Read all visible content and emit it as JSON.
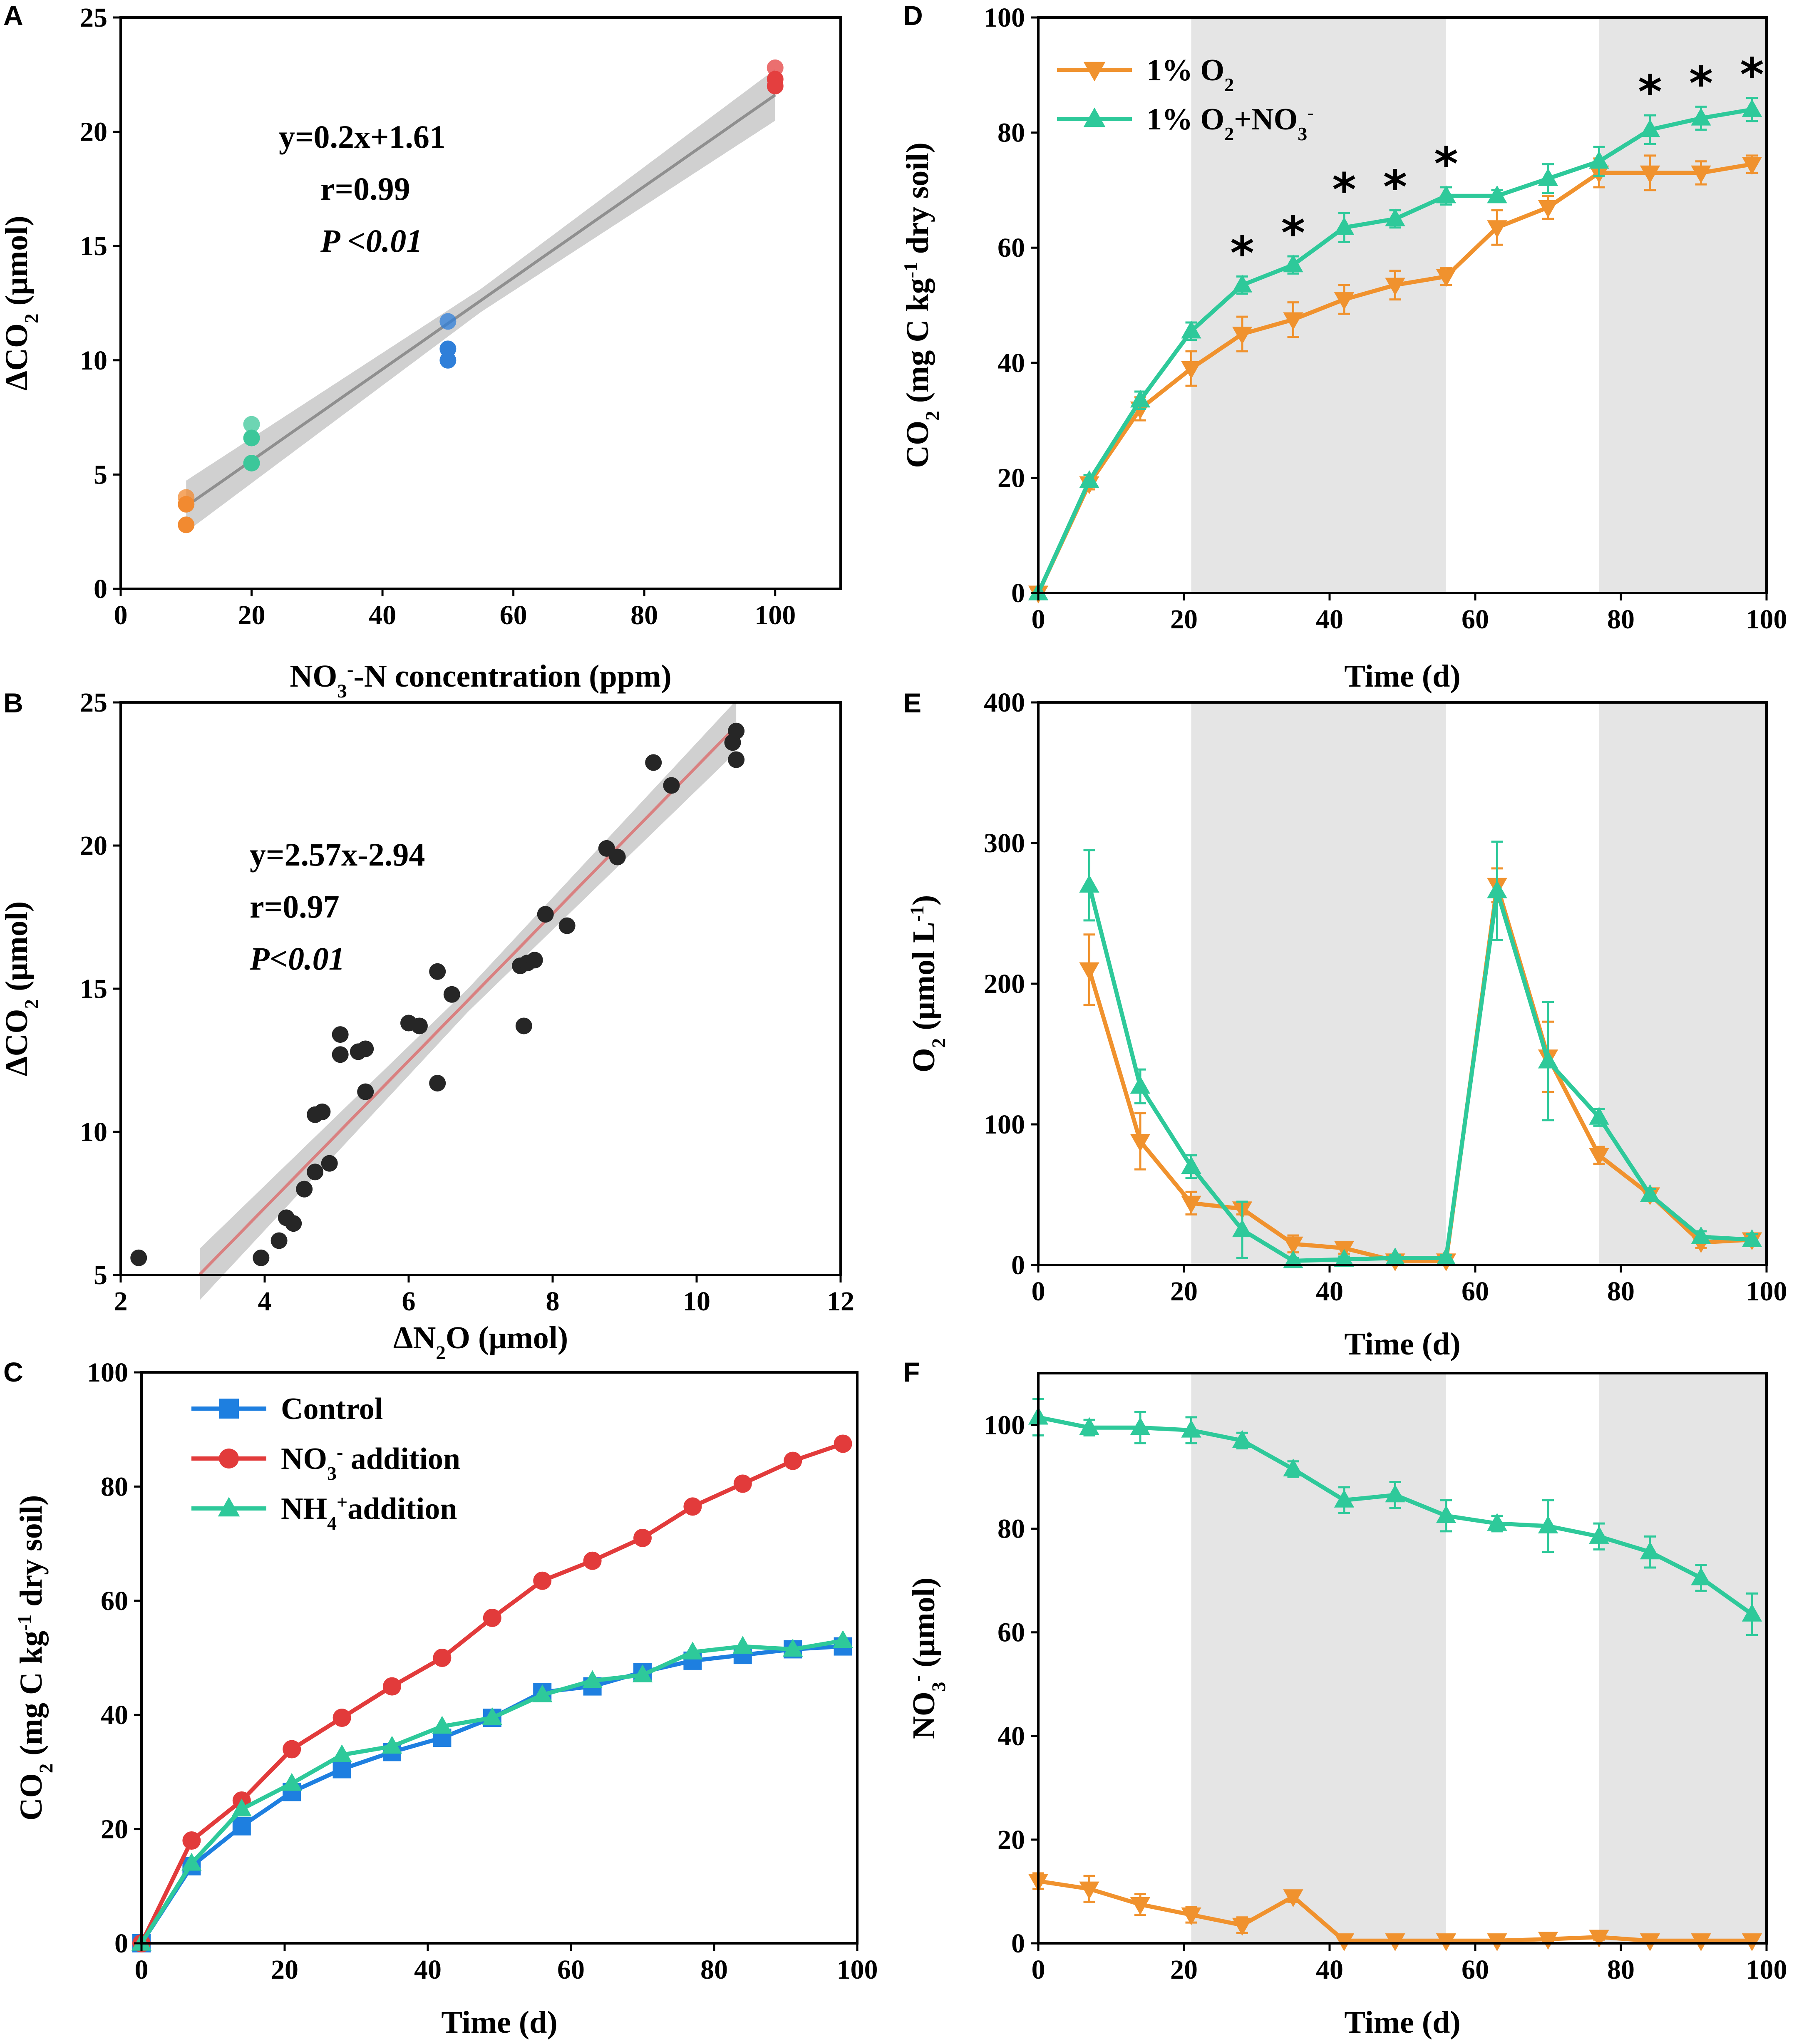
{
  "figure": {
    "panels": [
      {
        "id": "A",
        "letter": "A",
        "xlabel_parts": [
          {
            "t": "NO"
          },
          {
            "t": "3",
            "sub": true
          },
          {
            "t": "-",
            "sup": true
          },
          {
            "t": "-N concentration (ppm)"
          }
        ],
        "ylabel_parts": [
          {
            "t": "ΔCO"
          },
          {
            "t": "2",
            "sub": true
          },
          {
            "t": " (μmol)"
          }
        ],
        "annotations": [
          "y=0.2x+1.61",
          "r=0.99",
          "P <0.01"
        ]
      },
      {
        "id": "B",
        "letter": "B",
        "xlabel_parts": [
          {
            "t": "ΔN"
          },
          {
            "t": "2",
            "sub": true
          },
          {
            "t": "O (μmol)"
          }
        ],
        "ylabel_parts": [
          {
            "t": "ΔCO"
          },
          {
            "t": "2",
            "sub": true
          },
          {
            "t": " (μmol)"
          }
        ],
        "annotations": [
          "y=2.57x-2.94",
          "r=0.97",
          "P<0.01"
        ]
      },
      {
        "id": "C",
        "letter": "C",
        "xlabel_parts": [
          {
            "t": "Time (d)"
          }
        ],
        "ylabel_parts": [
          {
            "t": "CO"
          },
          {
            "t": "2",
            "sub": true
          },
          {
            "t": " (mg C kg"
          },
          {
            "t": "-1",
            "sup": true
          },
          {
            "t": " dry soil)"
          }
        ],
        "legend": [
          [
            {
              "t": "Control"
            }
          ],
          [
            {
              "t": "NO"
            },
            {
              "t": "3",
              "sub": true
            },
            {
              "t": "-",
              "sup": true
            },
            {
              "t": " addition"
            }
          ],
          [
            {
              "t": "NH"
            },
            {
              "t": "4",
              "sub": true
            },
            {
              "t": "+",
              "sup": true
            },
            {
              "t": "addition"
            }
          ]
        ]
      },
      {
        "id": "D",
        "letter": "D",
        "xlabel_parts": [
          {
            "t": "Time (d)"
          }
        ],
        "ylabel_parts": [
          {
            "t": "CO"
          },
          {
            "t": "2",
            "sub": true
          },
          {
            "t": " (mg C kg"
          },
          {
            "t": "-1",
            "sup": true
          },
          {
            "t": " dry soil)"
          }
        ],
        "legend": [
          [
            {
              "t": "1% O"
            },
            {
              "t": "2",
              "sub": true
            }
          ],
          [
            {
              "t": "1% O"
            },
            {
              "t": "2",
              "sub": true
            },
            {
              "t": "+NO"
            },
            {
              "t": "3",
              "sub": true
            },
            {
              "t": "-",
              "sup": true
            }
          ]
        ],
        "significance_marker": "*"
      },
      {
        "id": "E",
        "letter": "E",
        "xlabel_parts": [
          {
            "t": "Time (d)"
          }
        ],
        "ylabel_parts": [
          {
            "t": "O"
          },
          {
            "t": "2",
            "sub": true
          },
          {
            "t": " (μmol L"
          },
          {
            "t": "-1",
            "sup": true
          },
          {
            "t": ")"
          }
        ]
      },
      {
        "id": "F",
        "letter": "F",
        "xlabel_parts": [
          {
            "t": "Time (d)"
          }
        ],
        "ylabel_parts": [
          {
            "t": "NO"
          },
          {
            "t": "3",
            "sub": true
          },
          {
            "t": "-",
            "sup": true
          },
          {
            "t": " (μmol)"
          }
        ]
      }
    ]
  },
  "chart_data": [
    {
      "id": "A",
      "type": "scatter",
      "xlim": [
        0,
        110
      ],
      "ylim": [
        0,
        25
      ],
      "xticks": [
        0,
        20,
        40,
        60,
        80,
        100
      ],
      "yticks": [
        0,
        5,
        10,
        15,
        20,
        25
      ],
      "fit": {
        "slope": 0.2,
        "intercept": 1.61,
        "x_range": [
          10,
          100
        ],
        "ci_band": true
      },
      "groups": [
        {
          "name": "10 ppm",
          "color": "#f28a30",
          "points": [
            [
              10,
              4.0
            ],
            [
              10,
              3.7
            ],
            [
              10,
              2.8
            ]
          ]
        },
        {
          "name": "20 ppm",
          "color": "#3cc79a",
          "points": [
            [
              20,
              7.2
            ],
            [
              20,
              6.6
            ],
            [
              20,
              5.5
            ]
          ]
        },
        {
          "name": "50 ppm",
          "color": "#2f7fd9",
          "points": [
            [
              50,
              11.7
            ],
            [
              50,
              10.5
            ],
            [
              50,
              10.0
            ]
          ]
        },
        {
          "name": "100 ppm",
          "color": "#e43f3f",
          "points": [
            [
              100,
              22.8
            ],
            [
              100,
              22.3
            ],
            [
              100,
              22.0
            ]
          ]
        }
      ]
    },
    {
      "id": "B",
      "type": "scatter",
      "xlim": [
        2,
        12
      ],
      "ylim": [
        5,
        25
      ],
      "xticks": [
        2,
        4,
        6,
        8,
        10,
        12
      ],
      "yticks": [
        5,
        10,
        15,
        20,
        25
      ],
      "fit": {
        "slope": 2.57,
        "intercept": -2.94,
        "x_range": [
          3.1,
          10.55
        ],
        "ci_band": true
      },
      "points": [
        [
          2.25,
          5.6
        ],
        [
          3.95,
          5.6
        ],
        [
          4.2,
          6.2
        ],
        [
          4.3,
          7.0
        ],
        [
          4.4,
          6.8
        ],
        [
          4.55,
          8.0
        ],
        [
          4.7,
          8.6
        ],
        [
          4.9,
          8.9
        ],
        [
          4.7,
          10.6
        ],
        [
          4.8,
          10.7
        ],
        [
          5.05,
          13.4
        ],
        [
          5.05,
          12.7
        ],
        [
          5.3,
          12.8
        ],
        [
          5.4,
          12.9
        ],
        [
          5.4,
          11.4
        ],
        [
          6.0,
          13.8
        ],
        [
          6.15,
          13.7
        ],
        [
          6.4,
          15.6
        ],
        [
          6.4,
          11.7
        ],
        [
          6.6,
          14.8
        ],
        [
          7.55,
          15.8
        ],
        [
          7.65,
          15.9
        ],
        [
          7.75,
          16.0
        ],
        [
          7.6,
          13.7
        ],
        [
          7.9,
          17.6
        ],
        [
          8.2,
          17.2
        ],
        [
          8.75,
          19.9
        ],
        [
          8.9,
          19.6
        ],
        [
          9.4,
          22.9
        ],
        [
          9.65,
          22.1
        ],
        [
          10.5,
          23.6
        ],
        [
          10.55,
          24.0
        ],
        [
          10.55,
          23.0
        ]
      ]
    },
    {
      "id": "C",
      "type": "line",
      "xlim": [
        0,
        100
      ],
      "ylim": [
        0,
        100
      ],
      "xticks": [
        0,
        20,
        40,
        60,
        80,
        100
      ],
      "yticks": [
        0,
        20,
        40,
        60,
        80,
        100
      ],
      "x": [
        0,
        7,
        14,
        21,
        28,
        35,
        42,
        49,
        56,
        63,
        70,
        77,
        84,
        91,
        98
      ],
      "series": [
        {
          "name": "Control",
          "color": "#1e7fe0",
          "marker": "square",
          "values": [
            0,
            13.5,
            20.5,
            26.5,
            30.5,
            33.5,
            36.0,
            39.5,
            44.0,
            45.0,
            47.5,
            49.5,
            50.5,
            51.5,
            52.0
          ]
        },
        {
          "name": "NO3- addition",
          "color": "#e23b3b",
          "marker": "circle",
          "values": [
            0,
            18.0,
            25.0,
            34.0,
            39.5,
            45.0,
            50.0,
            57.0,
            63.5,
            67.0,
            71.0,
            76.5,
            80.5,
            84.5,
            87.5
          ]
        },
        {
          "name": "NH4+addition",
          "color": "#2ec99a",
          "marker": "triangle-up",
          "values": [
            0,
            14.0,
            23.5,
            28.0,
            33.0,
            34.5,
            38.0,
            39.5,
            43.5,
            46.0,
            47.0,
            51.0,
            52.0,
            51.5,
            53.0
          ]
        }
      ]
    },
    {
      "id": "D",
      "type": "line",
      "xlim": [
        0,
        100
      ],
      "ylim": [
        0,
        100
      ],
      "xticks": [
        0,
        20,
        40,
        60,
        80,
        100
      ],
      "yticks": [
        0,
        20,
        40,
        60,
        80,
        100
      ],
      "shaded_x_ranges": [
        [
          21,
          56
        ],
        [
          77,
          100
        ]
      ],
      "x": [
        0,
        7,
        14,
        21,
        28,
        35,
        42,
        49,
        56,
        63,
        70,
        77,
        84,
        91,
        98
      ],
      "series": [
        {
          "name": "1% O2",
          "color": "#f0922e",
          "marker": "triangle-down",
          "values": [
            0,
            19.0,
            32.0,
            39.0,
            45.0,
            47.5,
            51.0,
            53.5,
            55.0,
            63.5,
            67.0,
            73.0,
            73.0,
            73.0,
            74.5
          ],
          "errors": [
            0,
            1.0,
            2.0,
            3.0,
            3.0,
            3.0,
            2.5,
            2.5,
            1.5,
            3.0,
            2.0,
            2.5,
            3.0,
            2.0,
            1.5
          ]
        },
        {
          "name": "1% O2+NO3-",
          "color": "#2ec99a",
          "marker": "triangle-up",
          "values": [
            0,
            19.5,
            33.5,
            45.5,
            53.5,
            57.0,
            63.5,
            65.0,
            69.0,
            69.0,
            72.0,
            75.0,
            80.5,
            82.5,
            84.0
          ],
          "errors": [
            0,
            1.0,
            1.5,
            1.5,
            1.5,
            1.5,
            2.5,
            1.5,
            1.5,
            1.0,
            2.5,
            2.5,
            2.5,
            2.0,
            2.0
          ]
        }
      ],
      "significant_days": [
        28,
        35,
        42,
        49,
        56,
        84,
        91,
        98
      ]
    },
    {
      "id": "E",
      "type": "line",
      "xlim": [
        0,
        100
      ],
      "ylim": [
        0,
        400
      ],
      "xticks": [
        0,
        20,
        40,
        60,
        80,
        100
      ],
      "yticks": [
        0,
        100,
        200,
        300,
        400
      ],
      "shaded_x_ranges": [
        [
          21,
          56
        ],
        [
          77,
          100
        ]
      ],
      "x": [
        7,
        14,
        21,
        28,
        35,
        42,
        49,
        56,
        63,
        70,
        77,
        84,
        91,
        98
      ],
      "series": [
        {
          "name": "1% O2",
          "color": "#f0922e",
          "marker": "triangle-down",
          "values": [
            210,
            88,
            44,
            40,
            15,
            12,
            3,
            3,
            270,
            148,
            78,
            50,
            16,
            18
          ],
          "errors": [
            25,
            20,
            8,
            4,
            6,
            4,
            2,
            2,
            12,
            25,
            6,
            4,
            4,
            4
          ]
        },
        {
          "name": "1% O2+NO3-",
          "color": "#2ec99a",
          "marker": "triangle-up",
          "values": [
            270,
            127,
            70,
            25,
            3,
            4,
            5,
            5,
            266,
            145,
            105,
            50,
            20,
            18
          ],
          "errors": [
            25,
            12,
            8,
            20,
            2,
            2,
            2,
            2,
            35,
            42,
            6,
            4,
            4,
            4
          ]
        }
      ]
    },
    {
      "id": "F",
      "type": "line",
      "xlim": [
        0,
        100
      ],
      "ylim": [
        0,
        110
      ],
      "xticks": [
        0,
        20,
        40,
        60,
        80,
        100
      ],
      "yticks": [
        0,
        20,
        40,
        60,
        80,
        100
      ],
      "shaded_x_ranges": [
        [
          21,
          56
        ],
        [
          77,
          100
        ]
      ],
      "x": [
        0,
        7,
        14,
        21,
        28,
        35,
        42,
        49,
        56,
        63,
        70,
        77,
        84,
        91,
        98
      ],
      "series": [
        {
          "name": "1% O2",
          "color": "#f0922e",
          "marker": "triangle-down",
          "values": [
            12,
            10.5,
            7.5,
            5.5,
            3.5,
            9,
            0.5,
            0.5,
            0.5,
            0.5,
            0.8,
            1.2,
            0.5,
            0.5,
            0.5
          ],
          "errors": [
            1.5,
            2.5,
            2,
            1.5,
            1.5,
            1,
            0.5,
            0.5,
            0.5,
            0.5,
            0.5,
            0.5,
            0.5,
            0.5,
            0.5
          ]
        },
        {
          "name": "1% O2+NO3-",
          "color": "#2ec99a",
          "marker": "triangle-up",
          "values": [
            101.5,
            99.5,
            99.5,
            99,
            97,
            91.5,
            85.5,
            86.5,
            82.5,
            81,
            80.5,
            78.5,
            75.5,
            70.5,
            63.5
          ],
          "errors": [
            3.5,
            1.5,
            3,
            2.5,
            1.5,
            1.5,
            2.5,
            2.5,
            3,
            1.5,
            5,
            2.5,
            3,
            2.5,
            4
          ]
        }
      ]
    }
  ]
}
